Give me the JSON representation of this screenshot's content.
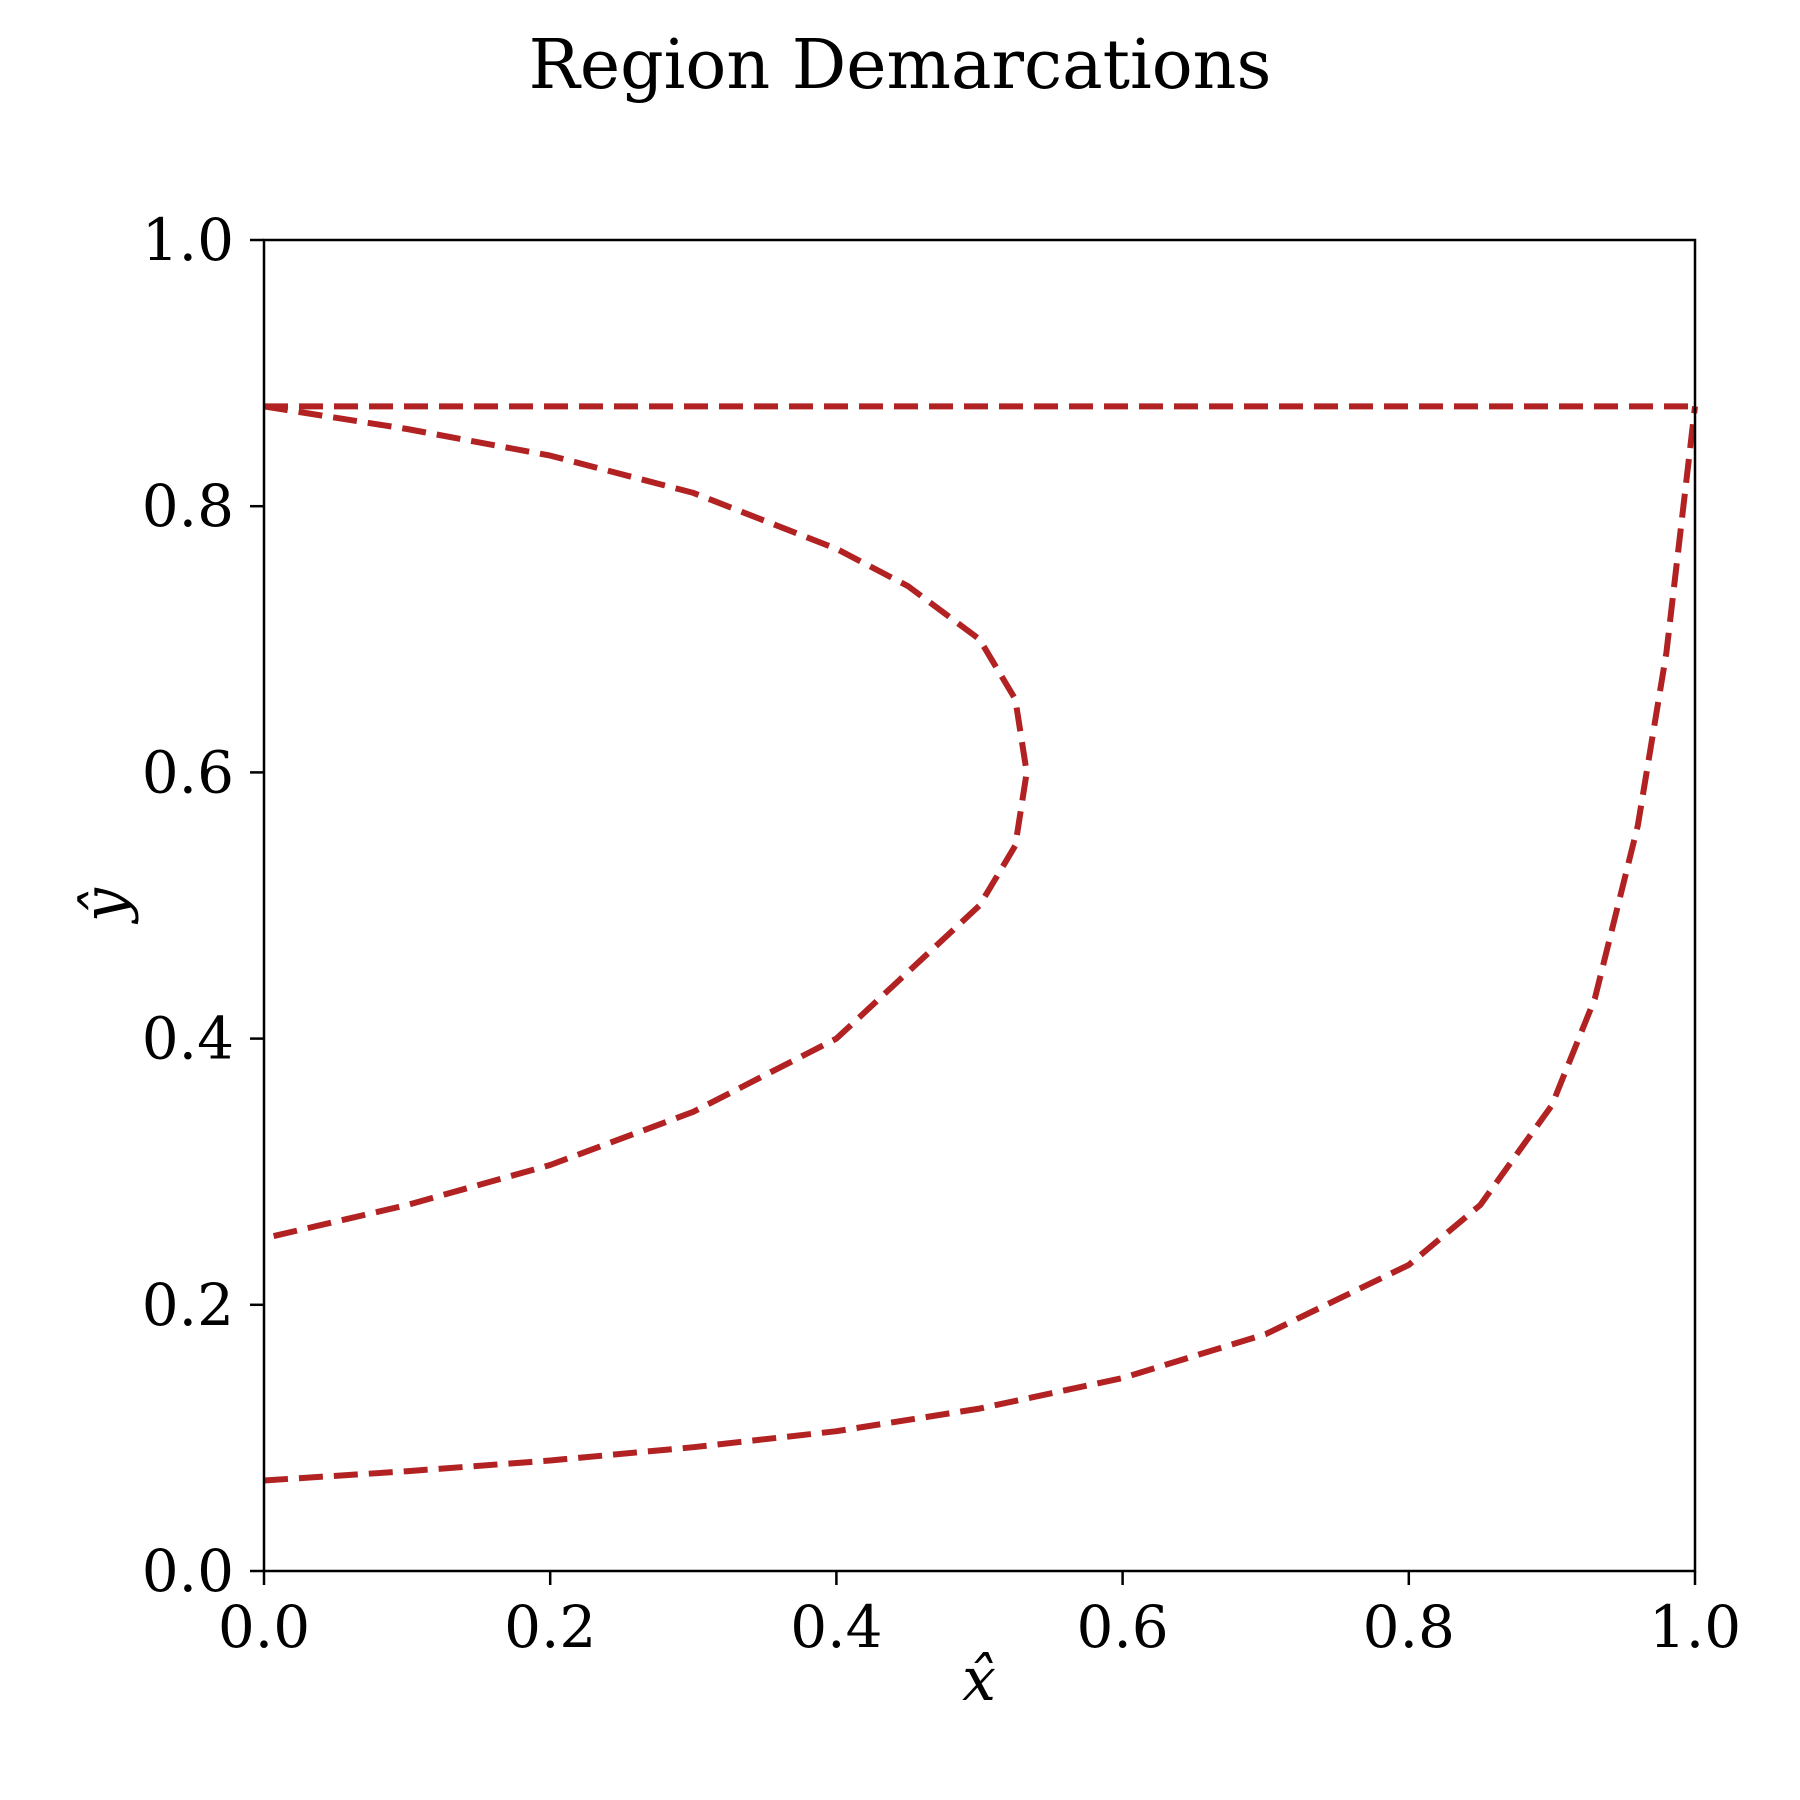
{
  "chart_data": {
    "type": "line",
    "title": "Region Demarcations",
    "xlabel": "x̂",
    "ylabel": "ŷ",
    "xlim": [
      0.0,
      1.0
    ],
    "ylim": [
      0.0,
      1.0
    ],
    "xticks": [
      "0.0",
      "0.2",
      "0.4",
      "0.6",
      "0.8",
      "1.0"
    ],
    "yticks": [
      "0.0",
      "0.2",
      "0.4",
      "0.6",
      "0.8",
      "1.0"
    ],
    "grid": false,
    "legend": "none",
    "line_style": "dashed",
    "series_color": "#b22222",
    "series": [
      {
        "x": [
          0.0,
          1.0
        ],
        "y": [
          0.875,
          0.875
        ]
      },
      {
        "x": [
          0.0,
          0.1,
          0.2,
          0.3,
          0.4,
          0.45,
          0.5,
          0.525,
          0.533,
          0.525,
          0.5,
          0.45,
          0.4,
          0.3,
          0.2,
          0.1,
          0.0
        ],
        "y": [
          0.875,
          0.858,
          0.838,
          0.81,
          0.768,
          0.74,
          0.7,
          0.655,
          0.6,
          0.545,
          0.5,
          0.45,
          0.4,
          0.345,
          0.305,
          0.275,
          0.25
        ]
      },
      {
        "x": [
          0.0,
          0.1,
          0.2,
          0.3,
          0.4,
          0.5,
          0.6,
          0.7,
          0.8,
          0.85,
          0.9,
          0.93,
          0.96,
          0.98,
          1.0
        ],
        "y": [
          0.068,
          0.075,
          0.083,
          0.093,
          0.105,
          0.122,
          0.145,
          0.178,
          0.23,
          0.275,
          0.35,
          0.43,
          0.56,
          0.69,
          0.875
        ]
      }
    ]
  }
}
